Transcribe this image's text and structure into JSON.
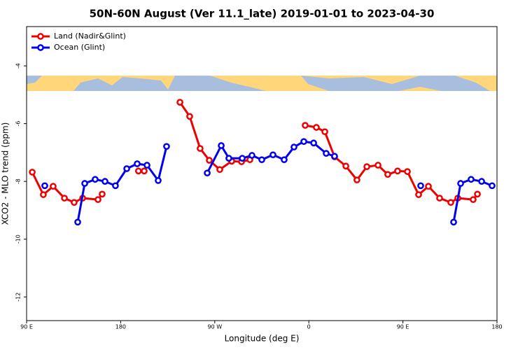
{
  "chart_data": {
    "type": "line",
    "title": "50N-60N August (Ver 11.1_late)   2019-01-01 to 2023-04-30",
    "x_label": "Longitude (deg E)",
    "y_label": "XCO2 - MLO trend (ppm)",
    "xlim": [
      90,
      540
    ],
    "ylim": [
      -12.82,
      -2.64
    ],
    "xticks": [
      {
        "value": 90,
        "label": "90 E"
      },
      180,
      {
        "value": 270,
        "label": "90 W"
      },
      {
        "value": 360,
        "label": "0"
      },
      {
        "value": 450,
        "label": "90 E"
      },
      {
        "value": 540,
        "label": "180"
      }
    ],
    "yticks": [
      -4,
      -6,
      -8,
      -10,
      -12
    ],
    "legend": "top-left",
    "series": [
      {
        "name": "Land (Nadir&Glint)",
        "color": "#ee0000",
        "x": [
          95.4,
          106,
          115.4,
          126.2,
          135.5,
          143.6,
          158.3,
          162.3,
          null,
          197,
          202.5,
          null,
          236.7,
          246,
          256,
          264.8,
          274.8,
          286.2,
          295.6,
          303.6,
          null,
          356.5,
          367.2,
          375.3,
          384.6,
          395.4,
          406,
          415.5,
          426.2,
          435.5,
          444.9,
          454.3,
          465,
          474.4,
          485.1,
          495.8,
          502.5,
          517.2,
          521.3
        ],
        "values": [
          -7.68,
          -8.46,
          -8.17,
          -8.58,
          -8.73,
          -8.58,
          -8.63,
          -8.44,
          null,
          -7.64,
          -7.64,
          null,
          -5.26,
          -5.75,
          -6.86,
          -7.27,
          -7.59,
          -7.3,
          -7.32,
          -7.25,
          null,
          -6.06,
          -6.13,
          -6.28,
          -7.15,
          -7.47,
          -7.95,
          -7.49,
          -7.44,
          -7.76,
          -7.64,
          -7.66,
          -8.46,
          -8.17,
          -8.58,
          -8.73,
          -8.58,
          -8.63,
          -8.44
        ]
      },
      {
        "name": "Ocean (Glint)",
        "color": "#0000ee",
        "x": [
          107.4,
          null,
          138.9,
          145.6,
          155.6,
          165,
          175,
          185.8,
          195.8,
          205.2,
          215.9,
          223.9,
          null,
          262.8,
          276.2,
          283.5,
          296.3,
          305.6,
          315,
          325.7,
          336.4,
          345.8,
          355.2,
          364.6,
          376.6,
          384.6,
          null,
          467,
          null,
          498.5,
          505.2,
          515.2,
          525.3,
          535.3
        ],
        "values": [
          -8.15,
          null,
          -9.41,
          -8.07,
          -7.93,
          -8.0,
          -8.15,
          -7.56,
          -7.39,
          -7.44,
          -7.97,
          -6.79,
          null,
          -7.71,
          -6.76,
          -7.2,
          -7.2,
          -7.1,
          -7.25,
          -7.08,
          -7.25,
          -6.81,
          -6.62,
          -6.67,
          -7.03,
          -7.13,
          null,
          -8.15,
          null,
          -9.41,
          -8.07,
          -7.93,
          -8.0,
          -8.15
        ]
      }
    ]
  }
}
